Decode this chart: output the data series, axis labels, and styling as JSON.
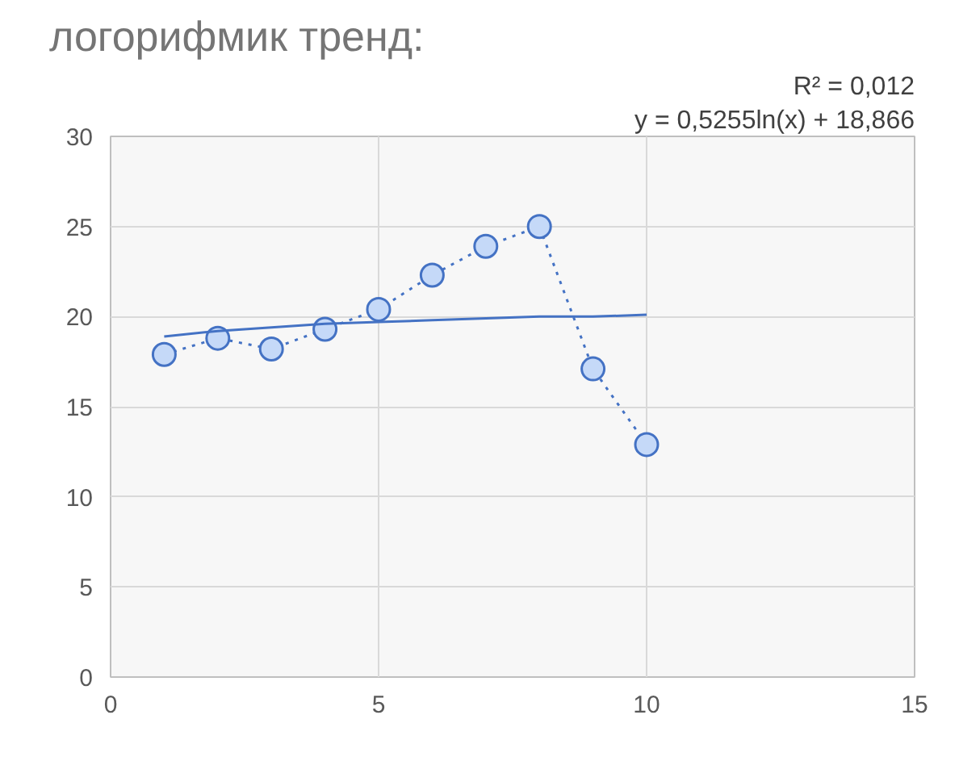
{
  "chart_data": {
    "type": "line",
    "title": "логорифмик тренд:",
    "annotations": [
      "y = 0,5255ln(x) + 18,866",
      "R² = 0,012"
    ],
    "xlim": [
      0,
      15
    ],
    "ylim": [
      0,
      30
    ],
    "xticks": [
      0,
      5,
      10,
      15
    ],
    "yticks": [
      0,
      5,
      10,
      15,
      20,
      25,
      30
    ],
    "grid": true,
    "series": [
      {
        "color": "#4472c4",
        "marker": "circle",
        "line_style": "dotted",
        "x": [
          1,
          2,
          3,
          4,
          5,
          6,
          7,
          8,
          9,
          10
        ],
        "values": [
          17.9,
          18.8,
          18.2,
          19.3,
          20.4,
          22.3,
          23.9,
          25.0,
          17.1,
          12.9
        ]
      },
      {
        "color": "#4472c4",
        "marker": "none",
        "line_style": "solid",
        "x": [
          1,
          2,
          3,
          4,
          5,
          6,
          7,
          8,
          9,
          10
        ],
        "values": [
          18.9,
          19.2,
          19.4,
          19.6,
          19.7,
          19.8,
          19.9,
          20.0,
          20.0,
          20.1
        ]
      }
    ]
  }
}
